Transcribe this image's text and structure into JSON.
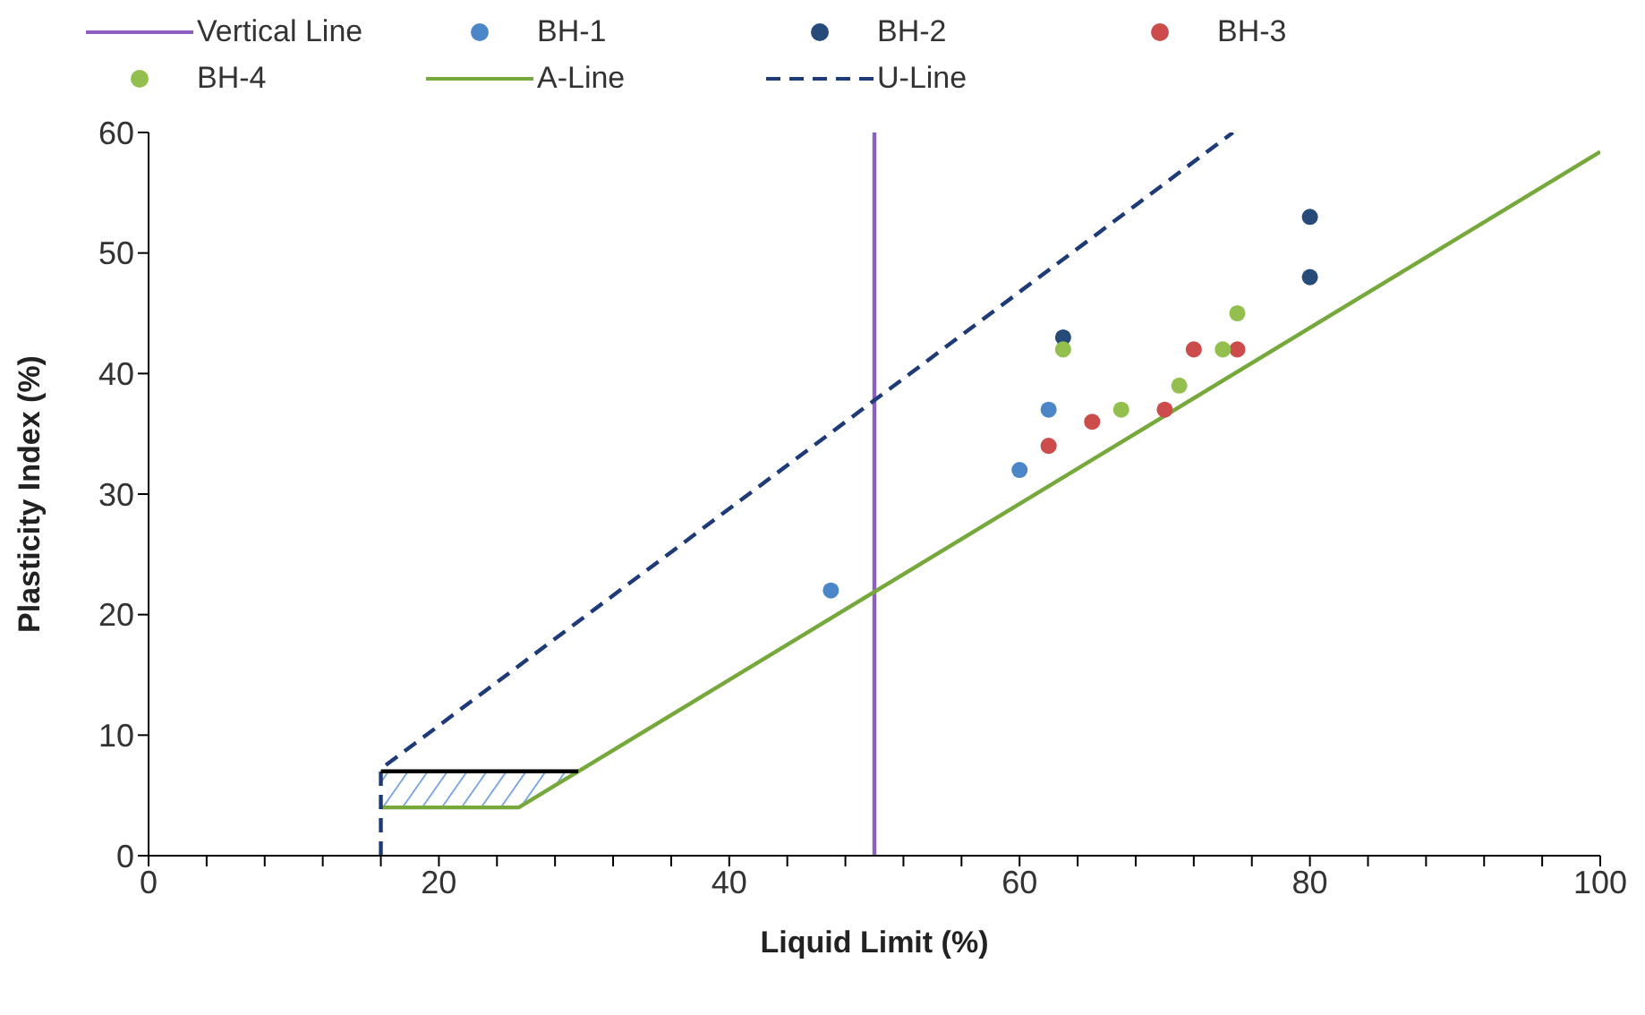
{
  "chart_data": {
    "type": "scatter",
    "xlabel": "Liquid Limit (%)",
    "ylabel": "Plasticity Index (%)",
    "xlim": [
      0,
      100
    ],
    "ylim": [
      0,
      60
    ],
    "xticks": [
      0,
      {
        "value": 4,
        "label": null
      },
      {
        "value": 8,
        "label": null
      },
      {
        "value": 12,
        "label": null
      },
      {
        "value": 16,
        "label": null
      },
      20,
      {
        "value": 24,
        "label": null
      },
      {
        "value": 28,
        "label": null
      },
      {
        "value": 32,
        "label": null
      },
      {
        "value": 36,
        "label": null
      },
      40,
      {
        "value": 44,
        "label": null
      },
      {
        "value": 48,
        "label": null
      },
      {
        "value": 52,
        "label": null
      },
      {
        "value": 56,
        "label": null
      },
      60,
      {
        "value": 64,
        "label": null
      },
      {
        "value": 68,
        "label": null
      },
      {
        "value": 72,
        "label": null
      },
      {
        "value": 76,
        "label": null
      },
      80,
      {
        "value": 84,
        "label": null
      },
      {
        "value": 88,
        "label": null
      },
      {
        "value": 92,
        "label": null
      },
      {
        "value": 96,
        "label": null
      },
      100
    ],
    "yticks": [
      0,
      10,
      20,
      30,
      40,
      50,
      60
    ],
    "grid": false,
    "legend": "top",
    "marker": "circle",
    "series": [
      {
        "name": "Vertical Line",
        "type": "line",
        "color": "#8e5fc2",
        "x": [
          50,
          50
        ],
        "values": [
          0,
          60
        ],
        "marker": "none",
        "line_style": "solid"
      },
      {
        "name": "BH-1",
        "color": "#4a86c8",
        "x": [
          47,
          60,
          62
        ],
        "values": [
          22,
          32,
          37
        ]
      },
      {
        "name": "BH-2",
        "color": "#264b78",
        "x": [
          63,
          80,
          80
        ],
        "values": [
          43,
          53,
          48
        ]
      },
      {
        "name": "BH-3",
        "color": "#cc4b4b",
        "x": [
          62,
          65,
          70,
          72,
          75
        ],
        "values": [
          34,
          36,
          37,
          42,
          42
        ]
      },
      {
        "name": "BH-4",
        "color": "#93bf4f",
        "x": [
          63,
          67,
          71,
          74,
          75
        ],
        "values": [
          42,
          37,
          39,
          42,
          45
        ]
      },
      {
        "name": "A-Line",
        "type": "line",
        "color": "#77a83c",
        "x": [
          16,
          25.5,
          100
        ],
        "values": [
          4,
          4,
          58.4
        ],
        "marker": "none",
        "line_style": "solid"
      },
      {
        "name": "U-Line",
        "type": "line",
        "color": "#1f3a78",
        "x": [
          16,
          16,
          74.7
        ],
        "values": [
          0,
          7.2,
          60
        ],
        "marker": "none",
        "line_style": "dashed"
      },
      {
        "type": "line",
        "color": "#000000",
        "x": [
          16,
          25.5,
          29.6
        ],
        "values": [
          7,
          7,
          7
        ],
        "lower": [
          4,
          4,
          7
        ],
        "upper": [
          7,
          7,
          7
        ],
        "marker": "none",
        "line_style": "solid"
      }
    ]
  }
}
